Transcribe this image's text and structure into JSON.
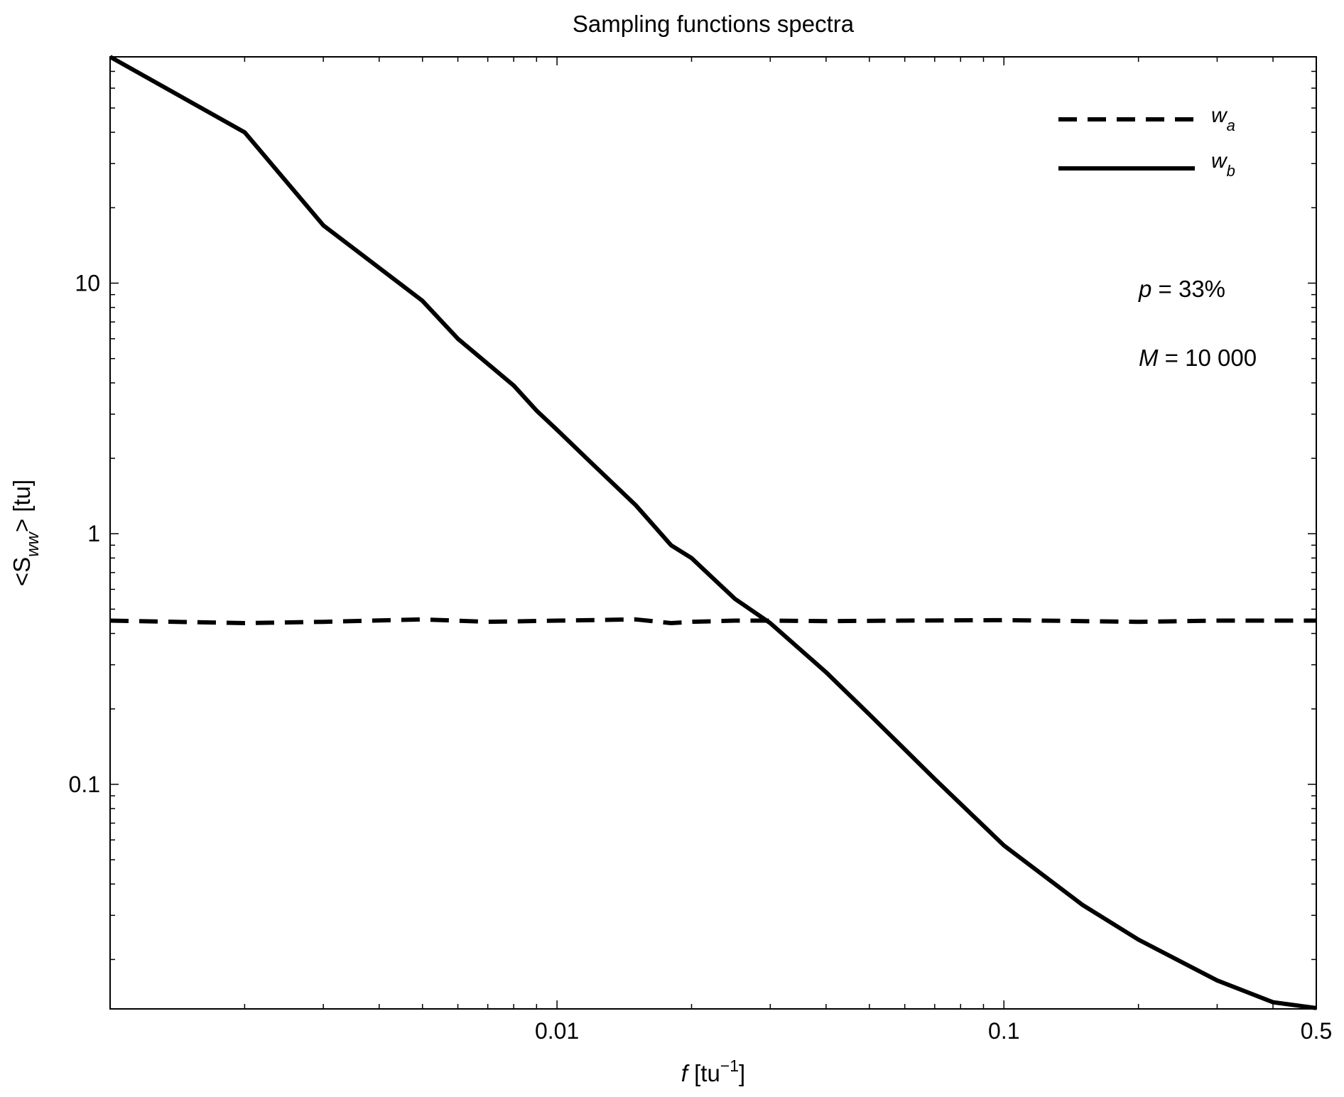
{
  "chart_data": {
    "type": "line",
    "title": "Sampling functions spectra",
    "xlabel": {
      "var": "f",
      "unit_open": " [tu",
      "unit_exp": "−1",
      "unit_close": "]"
    },
    "ylabel": {
      "open": "<S",
      "sub": "ww",
      "close": "> [tu]"
    },
    "xscale": "log",
    "yscale": "log",
    "xlim": [
      0.001,
      0.5
    ],
    "ylim": [
      0.0127,
      80
    ],
    "xticks": [
      {
        "value": 0.01,
        "label": "0.01"
      },
      {
        "value": 0.1,
        "label": "0.1"
      },
      {
        "value": 0.5,
        "label": "0.5"
      }
    ],
    "yticks": [
      {
        "value": 10,
        "label": "10"
      },
      {
        "value": 1,
        "label": "1"
      },
      {
        "value": 0.1,
        "label": "0.1"
      }
    ],
    "grid": false,
    "legend": {
      "position": "top-right"
    },
    "series": [
      {
        "name": "w",
        "subscript": "a",
        "style": "dashed",
        "color": "#000000",
        "x": [
          0.001,
          0.002,
          0.003,
          0.005,
          0.007,
          0.01,
          0.015,
          0.018,
          0.02,
          0.025,
          0.03,
          0.04,
          0.06,
          0.1,
          0.2,
          0.3,
          0.5
        ],
        "y": [
          0.45,
          0.44,
          0.445,
          0.455,
          0.445,
          0.45,
          0.455,
          0.44,
          0.445,
          0.45,
          0.45,
          0.448,
          0.45,
          0.452,
          0.445,
          0.45,
          0.45
        ]
      },
      {
        "name": "w",
        "subscript": "b",
        "style": "solid",
        "color": "#000000",
        "x": [
          0.001,
          0.002,
          0.003,
          0.005,
          0.006,
          0.008,
          0.009,
          0.01,
          0.012,
          0.015,
          0.018,
          0.02,
          0.025,
          0.03,
          0.04,
          0.05,
          0.07,
          0.1,
          0.15,
          0.2,
          0.3,
          0.4,
          0.5
        ],
        "y": [
          80,
          40,
          17,
          8.5,
          6.0,
          3.9,
          3.1,
          2.6,
          1.9,
          1.3,
          0.9,
          0.8,
          0.55,
          0.44,
          0.28,
          0.19,
          0.105,
          0.057,
          0.033,
          0.024,
          0.0165,
          0.0135,
          0.0128
        ]
      }
    ],
    "annotations": [
      {
        "var": "p",
        "text": " = 33%"
      },
      {
        "var": "M",
        "text": " = 10 000"
      }
    ]
  }
}
